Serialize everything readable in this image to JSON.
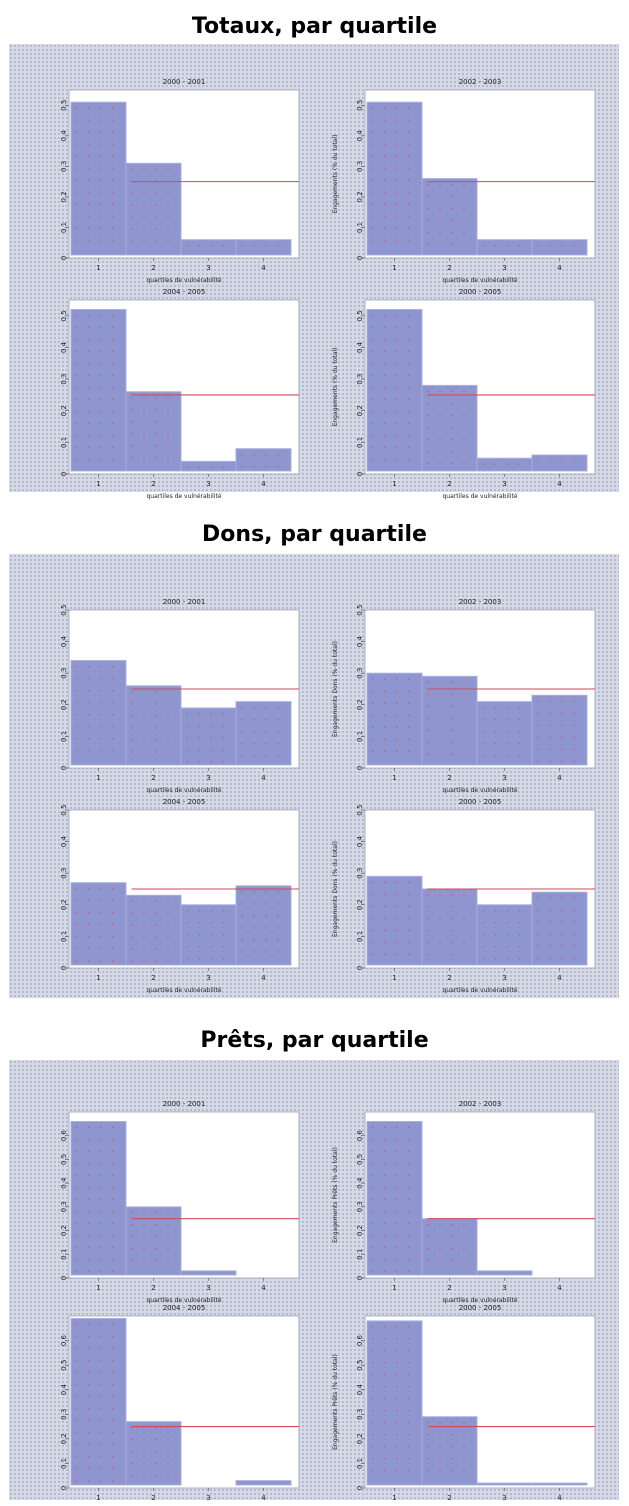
{
  "sections": [
    {
      "title": "Totaux, par quartile",
      "chart_data": {
        "type": "bar",
        "categories": [
          "1",
          "2",
          "3",
          "4"
        ],
        "ylabel_right": "Engagements (% du total)",
        "xlabel": "quartiles de vulnérabilité",
        "ylim": [
          0,
          0.55
        ],
        "yticks": [
          0,
          0.1,
          0.2,
          0.3,
          0.4,
          0.5
        ],
        "reference_line": 0.25,
        "panels": [
          {
            "title": "2000 - 2001",
            "values": [
              0.51,
              0.31,
              0.06,
              0.06
            ]
          },
          {
            "title": "2002 - 2003",
            "values": [
              0.51,
              0.26,
              0.06,
              0.06
            ]
          },
          {
            "title": "2004 - 2005",
            "values": [
              0.52,
              0.26,
              0.04,
              0.08
            ]
          },
          {
            "title": "2000 - 2005",
            "values": [
              0.52,
              0.28,
              0.05,
              0.06
            ]
          }
        ]
      }
    },
    {
      "title": "Dons, par quartile",
      "chart_data": {
        "type": "bar",
        "categories": [
          "1",
          "2",
          "3",
          "4"
        ],
        "ylabel_right": "Engagements Dons (% du total)",
        "xlabel": "quartiles de vulnérabilité",
        "ylim": [
          0,
          0.5
        ],
        "yticks": [
          0,
          0.1,
          0.2,
          0.3,
          0.4,
          0.5
        ],
        "reference_line": 0.25,
        "panels": [
          {
            "title": "2000 - 2001",
            "values": [
              0.34,
              0.26,
              0.19,
              0.21
            ]
          },
          {
            "title": "2002 - 2003",
            "values": [
              0.3,
              0.29,
              0.21,
              0.23
            ]
          },
          {
            "title": "2004 - 2005",
            "values": [
              0.27,
              0.23,
              0.2,
              0.26
            ]
          },
          {
            "title": "2000 - 2005",
            "values": [
              0.29,
              0.25,
              0.2,
              0.24
            ]
          }
        ]
      }
    },
    {
      "title": "Prêts, par quartile",
      "chart_data": {
        "type": "bar",
        "categories": [
          "1",
          "2",
          "3",
          "4"
        ],
        "ylabel_right": "Engagements Prêts (% du total)",
        "xlabel": "quartiles de vulnérabilité",
        "ylim": [
          0,
          0.7
        ],
        "yticks": [
          0,
          0.1,
          0.2,
          0.3,
          0.4,
          0.5,
          0.6
        ],
        "reference_line": 0.25,
        "panels": [
          {
            "title": "2000 - 2001",
            "values": [
              0.66,
              0.3,
              0.03,
              0.01
            ]
          },
          {
            "title": "2002 - 2003",
            "values": [
              0.66,
              0.25,
              0.03,
              0.01
            ]
          },
          {
            "title": "2004 - 2005",
            "values": [
              0.69,
              0.27,
              0.0,
              0.03
            ]
          },
          {
            "title": "2000 - 2005",
            "values": [
              0.68,
              0.29,
              0.02,
              0.02
            ]
          }
        ]
      }
    }
  ]
}
